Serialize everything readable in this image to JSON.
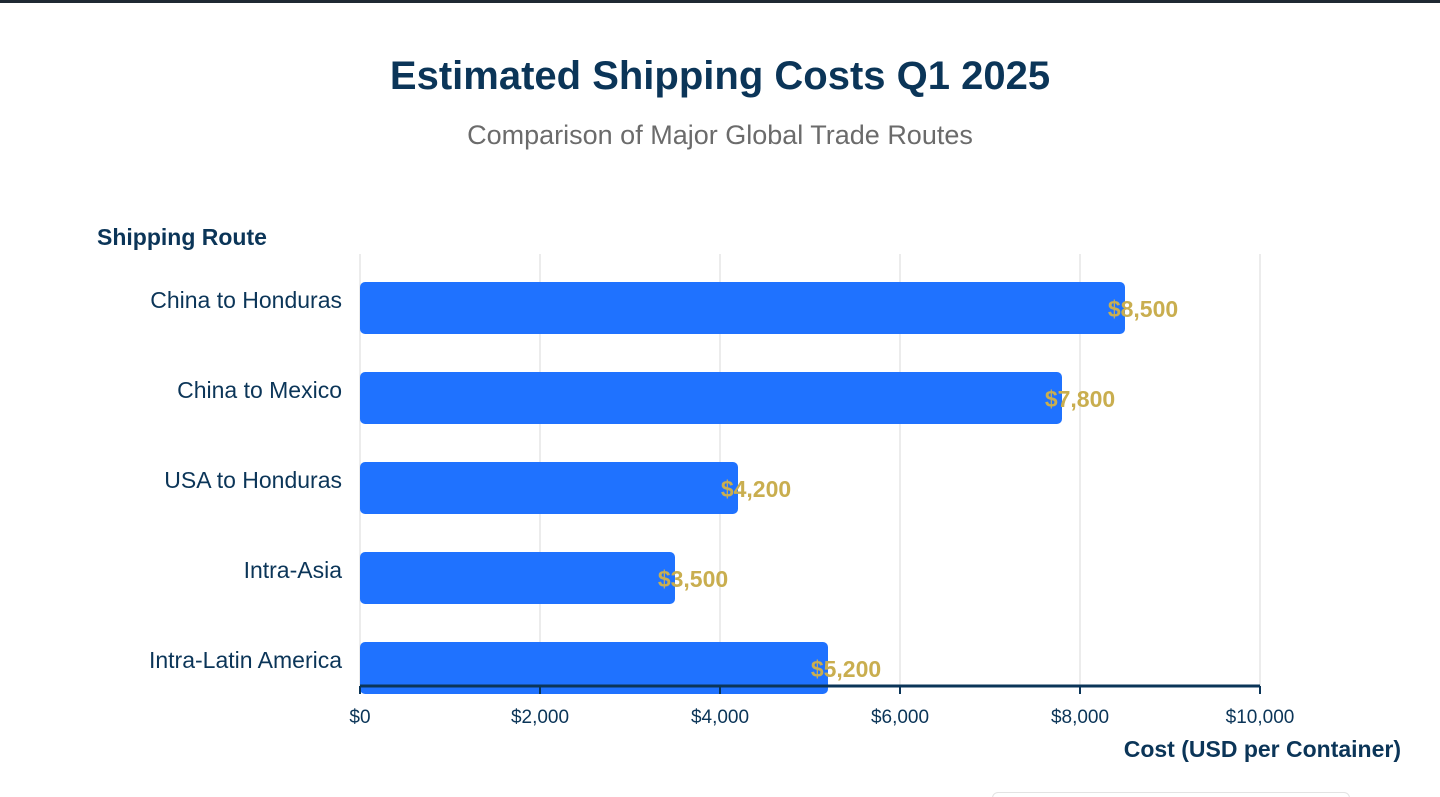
{
  "chart_data": {
    "type": "bar",
    "orientation": "horizontal",
    "title": "Estimated Shipping Costs Q1 2025",
    "subtitle": "Comparison of Major Global Trade Routes",
    "ylabel": "Shipping Route",
    "xlabel": "Cost (USD per Container)",
    "categories": [
      "China to Honduras",
      "China to Mexico",
      "USA to Honduras",
      "Intra-Asia",
      "Intra-Latin America"
    ],
    "values": [
      8500,
      7800,
      4200,
      3500,
      5200
    ],
    "data_labels": [
      "$8,500",
      "$7,800",
      "$4,200",
      "$3,500",
      "$5,200"
    ],
    "xlim": [
      0,
      10000
    ],
    "x_ticks": [
      0,
      2000,
      4000,
      6000,
      8000,
      10000
    ],
    "x_tick_labels": [
      "$0",
      "$2,000",
      "$4,000",
      "$6,000",
      "$8,000",
      "$10,000"
    ],
    "grid": true,
    "legend": "none",
    "colors": {
      "bar": "#1f72ff",
      "value_label": "#c9ae4f",
      "title": "#0b3558",
      "subtitle": "#6b6b6b",
      "grid": "#e6e6e6",
      "axis": "#0b3558"
    }
  }
}
